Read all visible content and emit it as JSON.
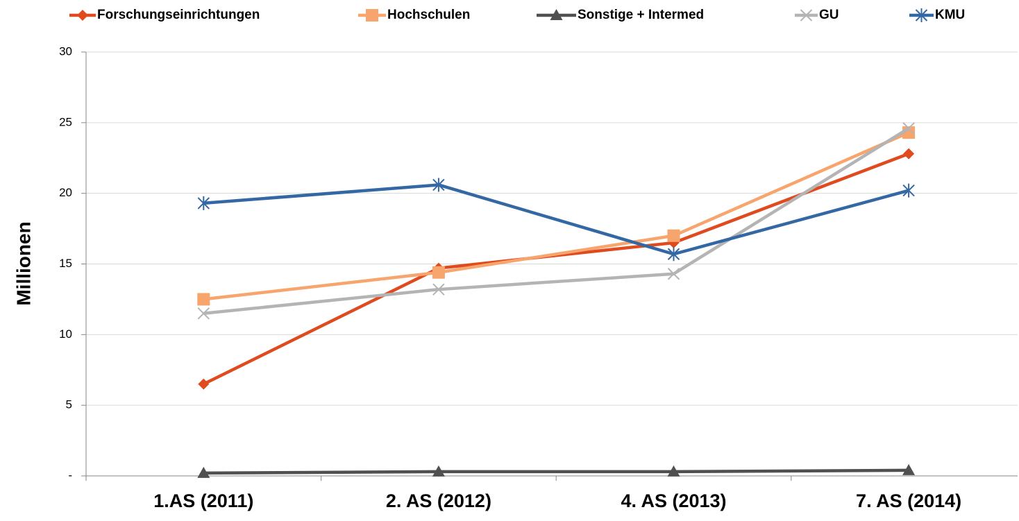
{
  "chart_data": {
    "type": "line",
    "y_label": "Millionen",
    "categories": [
      "1.AS (2011)",
      "2. AS (2012)",
      "4. AS (2013)",
      "7. AS (2014)"
    ],
    "series": [
      {
        "name": "Forschungseinrichtungen",
        "color": "#e04a1f",
        "marker": "diamond",
        "values": [
          6.5,
          14.7,
          16.5,
          22.8
        ]
      },
      {
        "name": "Hochschulen",
        "color": "#f8a46d",
        "marker": "square",
        "values": [
          12.5,
          14.4,
          17.0,
          24.3
        ]
      },
      {
        "name": "Sonstige + Intermed",
        "color": "#505050",
        "marker": "triangle",
        "values": [
          0.2,
          0.3,
          0.3,
          0.4
        ]
      },
      {
        "name": "GU",
        "color": "#b4b4b4",
        "marker": "x",
        "values": [
          11.5,
          13.2,
          14.3,
          24.6
        ]
      },
      {
        "name": "KMU",
        "color": "#3468a4",
        "marker": "asterisk",
        "values": [
          19.3,
          20.6,
          15.7,
          20.2
        ]
      }
    ],
    "ylim": [
      0,
      30
    ],
    "yticks": [
      {
        "value": 0,
        "label": "-"
      },
      5,
      10,
      15,
      20,
      25,
      30
    ],
    "grid": true,
    "legend": "top"
  }
}
